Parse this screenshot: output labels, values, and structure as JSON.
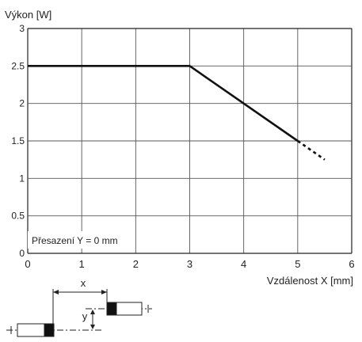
{
  "chart_data": {
    "type": "line",
    "ylabel": "Výkon [W]",
    "xlabel": "Vzdálenost X [mm]",
    "annotation": "Přesazení Y = 0 mm",
    "xlim": [
      0,
      6
    ],
    "ylim": [
      0,
      3
    ],
    "x_ticks": [
      "0",
      "1",
      "2",
      "3",
      "4",
      "5",
      "6"
    ],
    "y_ticks": [
      "0",
      "0.5",
      "1",
      "1.5",
      "2",
      "2.5",
      "3"
    ],
    "grid": true,
    "series": [
      {
        "x": [
          0,
          3,
          4,
          5
        ],
        "y": [
          2.5,
          2.5,
          2,
          1.5
        ],
        "style": "solid"
      },
      {
        "x": [
          5,
          5.5
        ],
        "y": [
          1.5,
          1.25
        ],
        "style": "dashed"
      }
    ]
  },
  "diagram": {
    "x_label": "x",
    "y_label": "y"
  }
}
